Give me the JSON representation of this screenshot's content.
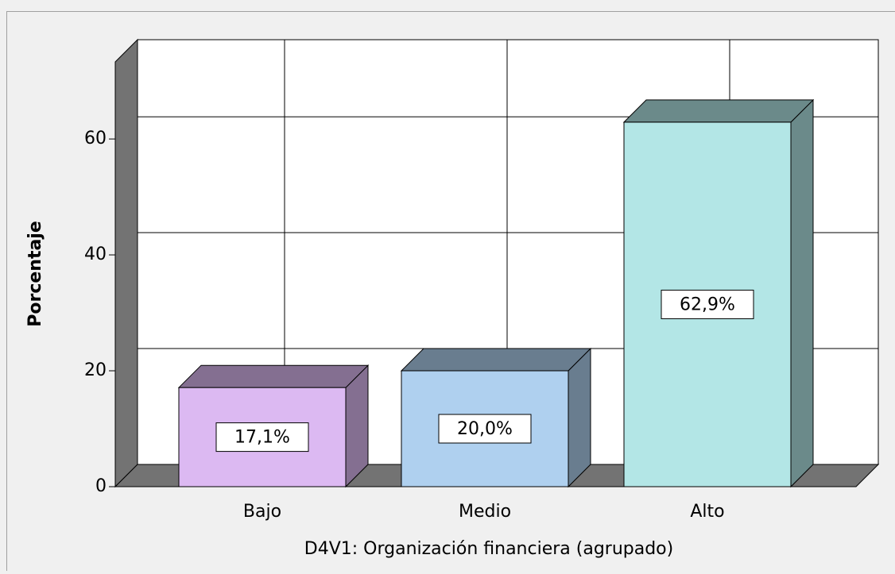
{
  "chart_data": {
    "type": "bar3d",
    "ylabel": "Porcentaje",
    "xlabel": "D4V1: Organización financiera (agrupado)",
    "categories": [
      "Bajo",
      "Medio",
      "Alto"
    ],
    "values": [
      17.1,
      20.0,
      62.9
    ],
    "value_labels": [
      "17,1%",
      "20,0%",
      "62,9%"
    ],
    "colors": [
      "#dcb9f2",
      "#afd0ef",
      "#b3e6e6"
    ],
    "ylim": [
      0,
      73.3
    ],
    "yticks": [
      0,
      20,
      40,
      60
    ],
    "grid": true
  }
}
